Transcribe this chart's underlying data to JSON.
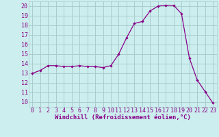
{
  "x": [
    0,
    1,
    2,
    3,
    4,
    5,
    6,
    7,
    8,
    9,
    10,
    11,
    12,
    13,
    14,
    15,
    16,
    17,
    18,
    19,
    20,
    21,
    22,
    23
  ],
  "y": [
    13.0,
    13.3,
    13.8,
    13.8,
    13.7,
    13.7,
    13.8,
    13.7,
    13.7,
    13.6,
    13.8,
    15.0,
    16.7,
    18.2,
    18.4,
    19.5,
    20.0,
    20.1,
    20.1,
    19.2,
    14.6,
    12.3,
    11.1,
    9.9
  ],
  "line_color": "#880088",
  "marker": "D",
  "marker_size": 2.2,
  "bg_color": "#cceeee",
  "grid_color": "#aacccc",
  "xlabel": "Windchill (Refroidissement éolien,°C)",
  "xlim": [
    -0.5,
    23.5
  ],
  "ylim": [
    9.5,
    20.5
  ],
  "xticks": [
    0,
    1,
    2,
    3,
    4,
    5,
    6,
    7,
    8,
    9,
    10,
    11,
    12,
    13,
    14,
    15,
    16,
    17,
    18,
    19,
    20,
    21,
    22,
    23
  ],
  "yticks": [
    10,
    11,
    12,
    13,
    14,
    15,
    16,
    17,
    18,
    19,
    20
  ],
  "font_size_xlabel": 6.5,
  "font_size_ytick": 6.0,
  "font_size_xtick": 6.0,
  "xlabel_color": "#880088",
  "tick_color": "#880088"
}
